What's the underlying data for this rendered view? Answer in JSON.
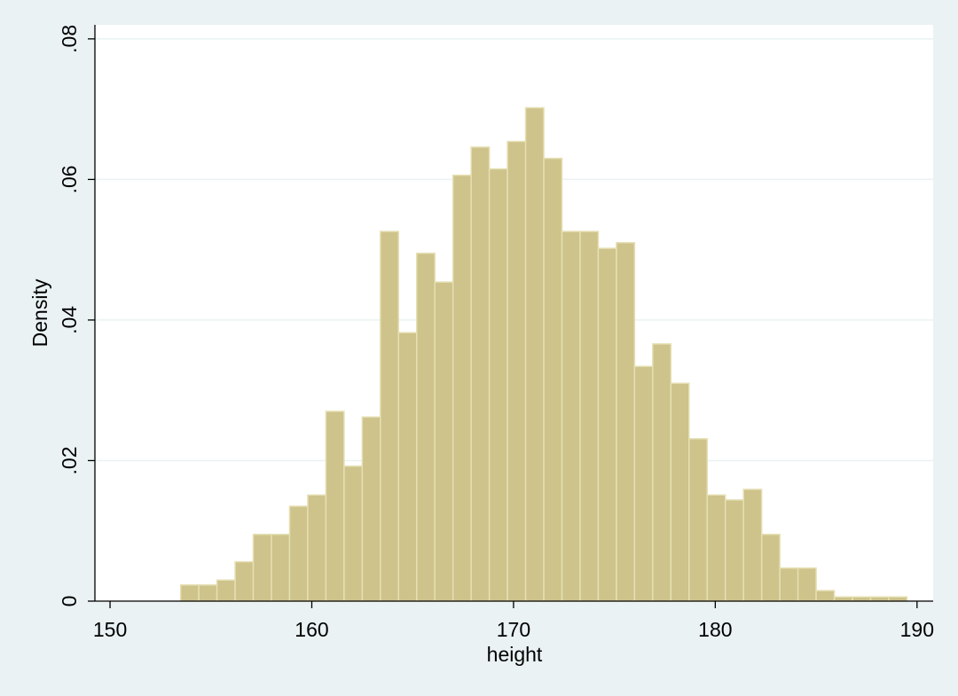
{
  "chart_data": {
    "type": "histogram",
    "xlabel": "height",
    "ylabel": "Density",
    "bins": [
      153.5,
      154.4,
      155.3,
      156.2,
      157.1,
      158,
      158.9,
      159.8,
      160.7,
      161.6,
      162.5,
      163.4,
      164.3,
      165.2,
      166.1,
      167,
      167.9,
      168.8,
      169.7,
      170.6,
      171.5,
      172.4,
      173.3,
      174.2,
      175.1,
      176,
      176.9,
      177.8,
      178.7,
      179.6,
      180.5,
      181.4,
      182.3,
      183.2,
      184.1,
      185,
      185.9,
      186.8,
      187.7,
      188.6,
      189.5
    ],
    "values": [
      0.0023,
      0.0023,
      0.003,
      0.0056,
      0.0095,
      0.0095,
      0.0135,
      0.0151,
      0.027,
      0.0192,
      0.0262,
      0.0526,
      0.0382,
      0.0495,
      0.0454,
      0.0606,
      0.0646,
      0.0615,
      0.0654,
      0.0702,
      0.063,
      0.0526,
      0.0526,
      0.0502,
      0.051,
      0.0334,
      0.0366,
      0.031,
      0.0231,
      0.0151,
      0.0144,
      0.0159,
      0.0095,
      0.0047,
      0.0047,
      0.0015,
      0.0006,
      0.0006,
      0.0006,
      0.0006
    ],
    "color": "#cdc38b",
    "xlim": [
      149.25,
      190.8
    ],
    "xticks": [
      150,
      160,
      170,
      180,
      190
    ],
    "ylim": [
      0,
      0.082
    ],
    "yticks": [
      0,
      {
        "value": 0.02,
        "label": ".02"
      },
      {
        "value": 0.04,
        "label": ".04"
      },
      {
        "value": 0.06,
        "label": ".06"
      },
      {
        "value": 0.08,
        "label": ".08"
      }
    ],
    "grid": true
  }
}
